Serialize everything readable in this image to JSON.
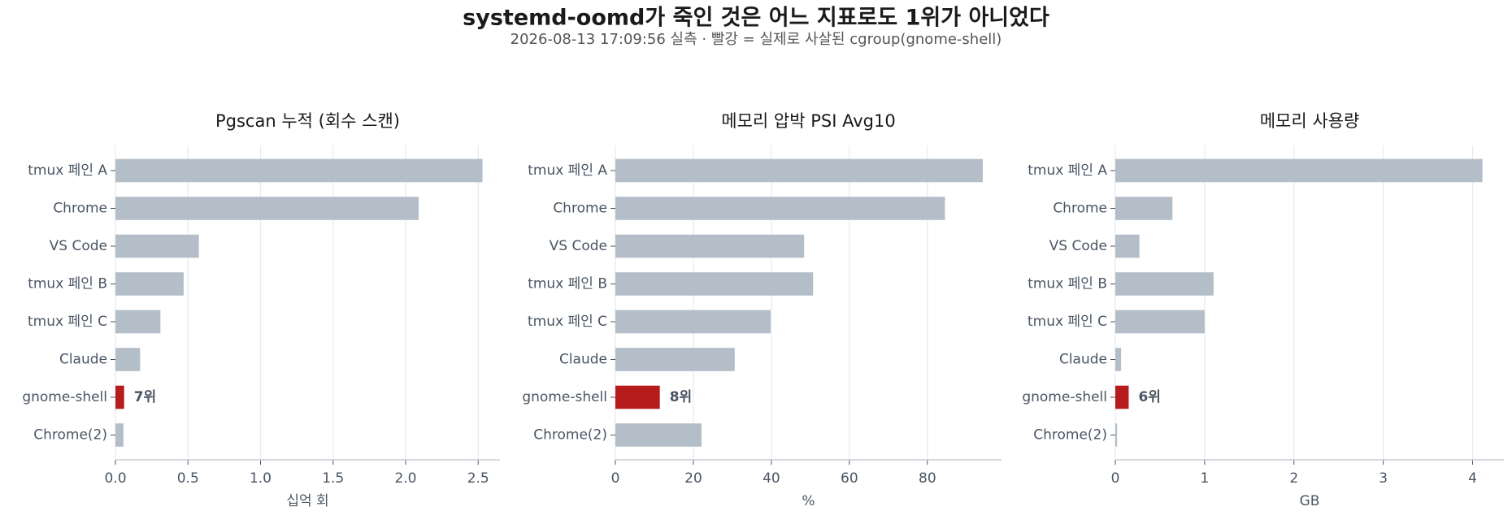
{
  "title": "systemd-oomd가 죽인 것은 어느 지표로도 1위가 아니었다",
  "subtitle": "2026-08-13 17:09:56 실측 · 빨강 = 실제로 사살된 cgroup(gnome-shell)",
  "chart_data": [
    {
      "type": "barh",
      "title": "Pgscan 누적 (회수 스캔)",
      "xlabel": "십억 회",
      "categories": [
        "tmux 페인 A",
        "Chrome",
        "VS Code",
        "tmux 페인 B",
        "tmux 페인 C",
        "Claude",
        "gnome-shell",
        "Chrome(2)"
      ],
      "values": [
        2.53,
        2.09,
        0.575,
        0.47,
        0.31,
        0.17,
        0.06,
        0.055
      ],
      "colors": [
        "#b4bec8",
        "#b4bec8",
        "#b4bec8",
        "#b4bec8",
        "#b4bec8",
        "#b4bec8",
        "#b71c1c",
        "#b4bec8"
      ],
      "annotations": [
        null,
        null,
        null,
        null,
        null,
        null,
        "7위",
        null
      ],
      "xlim": [
        0,
        2.65
      ],
      "xticks": [
        {
          "value": 0,
          "label": "0.0"
        },
        0.5,
        {
          "value": 1,
          "label": "1.0"
        },
        1.5,
        {
          "value": 2,
          "label": "2.0"
        },
        2.5
      ],
      "grid": true
    },
    {
      "type": "barh",
      "title": "메모리 압박 PSI Avg10",
      "xlabel": "%",
      "categories": [
        "tmux 페인 A",
        "Chrome",
        "VS Code",
        "tmux 페인 B",
        "tmux 페인 C",
        "Claude",
        "gnome-shell",
        "Chrome(2)"
      ],
      "values": [
        94.2,
        84.5,
        48.4,
        50.7,
        39.8,
        30.6,
        11.4,
        22.1
      ],
      "colors": [
        "#b4bec8",
        "#b4bec8",
        "#b4bec8",
        "#b4bec8",
        "#b4bec8",
        "#b4bec8",
        "#b71c1c",
        "#b4bec8"
      ],
      "annotations": [
        null,
        null,
        null,
        null,
        null,
        null,
        "8위",
        null
      ],
      "xlim": [
        0,
        99
      ],
      "xticks": [
        0,
        20,
        40,
        60,
        80
      ],
      "grid": true
    },
    {
      "type": "barh",
      "title": "메모리 사용량",
      "xlabel": "GB",
      "categories": [
        "tmux 페인 A",
        "Chrome",
        "VS Code",
        "tmux 페인 B",
        "tmux 페인 C",
        "Claude",
        "gnome-shell",
        "Chrome(2)"
      ],
      "values": [
        4.11,
        0.64,
        0.27,
        1.1,
        1.0,
        0.065,
        0.15,
        0.02
      ],
      "colors": [
        "#b4bec8",
        "#b4bec8",
        "#b4bec8",
        "#b4bec8",
        "#b4bec8",
        "#b4bec8",
        "#b71c1c",
        "#b4bec8"
      ],
      "annotations": [
        null,
        null,
        null,
        null,
        null,
        null,
        "6위",
        null
      ],
      "xlim": [
        0,
        4.35
      ],
      "xticks": [
        0,
        1,
        2,
        3,
        4
      ],
      "grid": true
    }
  ]
}
